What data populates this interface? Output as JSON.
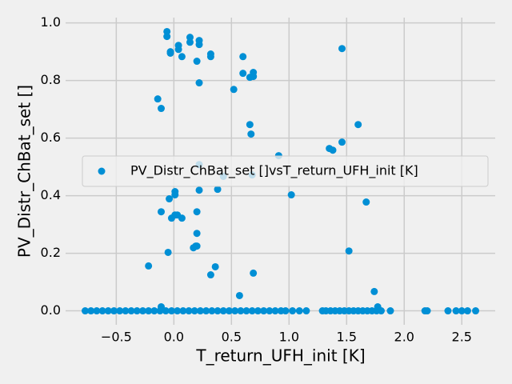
{
  "chart_data": {
    "type": "scatter",
    "xlabel": "T_return_UFH_init [K]",
    "ylabel": "PV_Distr_ChBat_set []",
    "xlim": [
      -0.94,
      2.79
    ],
    "ylim": [
      -0.0485,
      1.0185
    ],
    "xticks": [
      {
        "value": -0.5,
        "label": "−0.5"
      },
      {
        "value": 0.0,
        "label": "0.0"
      },
      {
        "value": 0.5,
        "label": "0.5"
      },
      {
        "value": 1.0,
        "label": "1.0"
      },
      {
        "value": 1.5,
        "label": "1.5"
      },
      {
        "value": 2.0,
        "label": "2.0"
      },
      {
        "value": 2.5,
        "label": "2.5"
      }
    ],
    "yticks": [
      {
        "value": 0.0,
        "label": "0.0"
      },
      {
        "value": 0.2,
        "label": "0.2"
      },
      {
        "value": 0.4,
        "label": "0.4"
      },
      {
        "value": 0.6,
        "label": "0.6"
      },
      {
        "value": 0.8,
        "label": "0.8"
      },
      {
        "value": 1.0,
        "label": "1.0"
      }
    ],
    "grid": true,
    "legend": "center right",
    "x": [
      -0.06,
      -0.06,
      -0.03,
      -0.03,
      0.04,
      0.04,
      0.07,
      0.14,
      0.14,
      0.22,
      0.22,
      0.2,
      0.32,
      0.32,
      0.22,
      -0.14,
      -0.11,
      0.52,
      0.6,
      0.6,
      0.69,
      0.69,
      0.66,
      0.66,
      0.67,
      1.46,
      1.6,
      1.46,
      1.35,
      1.38,
      0.91,
      0.22,
      0.68,
      0.43,
      0.01,
      0.01,
      0.22,
      0.38,
      1.02,
      1.67,
      -0.04,
      -0.11,
      0.2,
      -0.02,
      0.01,
      0.07,
      0.03,
      0.2,
      0.19,
      0.2,
      0.17,
      -0.05,
      1.52,
      -0.22,
      0.36,
      0.32,
      0.69,
      1.74,
      0.57,
      -0.11,
      1.77,
      -0.77,
      -0.72,
      -0.67,
      -0.62,
      -0.57,
      -0.52,
      -0.47,
      -0.42,
      -0.37,
      -0.32,
      -0.27,
      -0.22,
      -0.17,
      -0.12,
      -0.07,
      -0.02,
      0.03,
      0.08,
      0.13,
      0.18,
      0.23,
      0.28,
      0.33,
      0.38,
      0.43,
      0.48,
      0.53,
      0.58,
      0.63,
      0.68,
      0.73,
      0.78,
      0.83,
      0.88,
      0.93,
      0.97,
      1.03,
      1.09,
      1.15,
      1.29,
      1.32,
      1.36,
      1.4,
      1.44,
      1.48,
      1.52,
      1.56,
      1.6,
      1.64,
      1.68,
      1.72,
      1.76,
      1.8,
      1.88,
      2.18,
      2.2,
      2.38,
      2.45,
      2.5,
      2.55,
      2.62
    ],
    "series": [
      {
        "name": "PV_Distr_ChBat_set []vsT_return_UFH_init [K]",
        "color": "#008fd5",
        "values": [
          0.97,
          0.953,
          0.9,
          0.895,
          0.922,
          0.908,
          0.883,
          0.95,
          0.933,
          0.939,
          0.925,
          0.867,
          0.892,
          0.883,
          0.792,
          0.736,
          0.703,
          0.769,
          0.883,
          0.825,
          0.814,
          0.828,
          0.811,
          0.647,
          0.614,
          0.911,
          0.647,
          0.586,
          0.564,
          0.558,
          0.539,
          0.508,
          0.472,
          0.467,
          0.414,
          0.403,
          0.419,
          0.422,
          0.403,
          0.378,
          0.389,
          0.344,
          0.344,
          0.322,
          0.333,
          0.322,
          0.333,
          0.269,
          0.225,
          0.225,
          0.219,
          0.203,
          0.208,
          0.156,
          0.153,
          0.125,
          0.131,
          0.067,
          0.053,
          0.014,
          0.014,
          0,
          0,
          0,
          0,
          0,
          0,
          0,
          0,
          0,
          0,
          0,
          0,
          0,
          0,
          0,
          0,
          0,
          0,
          0,
          0,
          0,
          0,
          0,
          0,
          0,
          0,
          0,
          0,
          0,
          0,
          0,
          0,
          0,
          0,
          0,
          0,
          0,
          0,
          0,
          0,
          0,
          0,
          0,
          0,
          0,
          0,
          0,
          0,
          0,
          0,
          0,
          0,
          0,
          0,
          0,
          0,
          0,
          0,
          0,
          0,
          0
        ]
      }
    ]
  }
}
